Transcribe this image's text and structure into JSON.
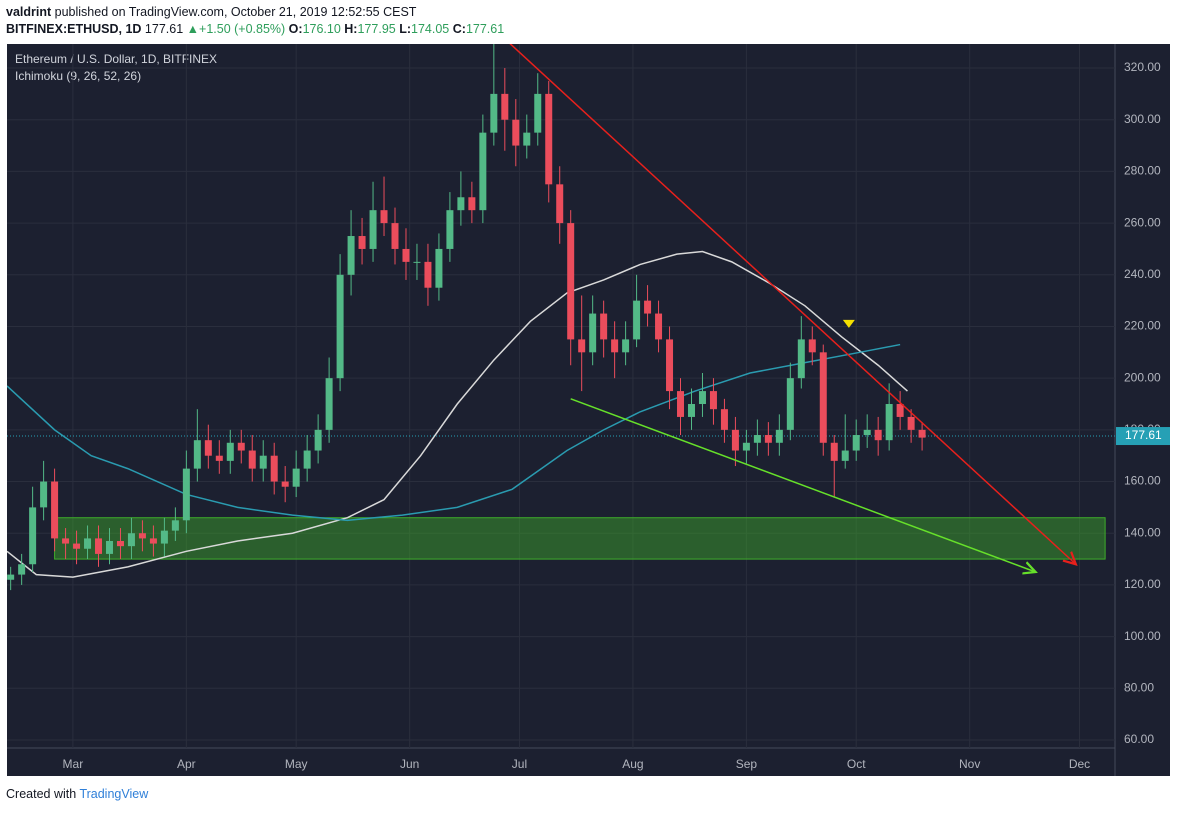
{
  "header": {
    "author": "valdrint",
    "published": "published on TradingView.com, October 21, 2019 12:52:55 CEST",
    "symbol": "BITFINEX:ETHUSD, 1D",
    "price": "177.61",
    "arrow": "▲",
    "change": "+1.50 (+0.85%)",
    "o_label": "O:",
    "o": "176.10",
    "h_label": "H:",
    "h": "177.95",
    "l_label": "L:",
    "l": "174.05",
    "c_label": "C:",
    "c": "177.61"
  },
  "footer": {
    "created": "Created with",
    "brand": "TradingView"
  },
  "chart_data": {
    "type": "candlestick",
    "title": "Ethereum / U.S. Dollar, 1D, BITFINEX",
    "indicator": "Ichimoku (9, 26, 52, 26)",
    "x": [
      -17,
      -14,
      -11,
      -8,
      -5,
      -2,
      1,
      4,
      7,
      10,
      13,
      16,
      19,
      22,
      25,
      28,
      31,
      34,
      37,
      40,
      43,
      46,
      49,
      52,
      55,
      58,
      61,
      64,
      67,
      70,
      73,
      76,
      79,
      82,
      85,
      88,
      91,
      94,
      97,
      100,
      103,
      106,
      109,
      112,
      115,
      118,
      121,
      124,
      127,
      130,
      133,
      136,
      139,
      142,
      145,
      148,
      151,
      154,
      157,
      160,
      163,
      166,
      169,
      172,
      175,
      178,
      181,
      184,
      187,
      190,
      193,
      196,
      199,
      202,
      205,
      208,
      211,
      214,
      217,
      220,
      223,
      226,
      229,
      232
    ],
    "open": [
      122,
      124,
      128,
      150,
      160,
      138,
      136,
      134,
      138,
      132,
      137,
      135,
      140,
      138,
      136,
      141,
      145,
      165,
      176,
      170,
      168,
      175,
      172,
      165,
      170,
      160,
      158,
      165,
      172,
      180,
      200,
      240,
      255,
      250,
      265,
      260,
      250,
      245,
      245,
      235,
      250,
      265,
      270,
      265,
      295,
      310,
      300,
      290,
      295,
      310,
      275,
      260,
      215,
      210,
      225,
      215,
      210,
      215,
      230,
      225,
      215,
      195,
      185,
      190,
      195,
      188,
      180,
      172,
      175,
      178,
      175,
      180,
      200,
      215,
      210,
      175,
      168,
      172,
      178,
      180,
      176,
      190,
      185,
      180
    ],
    "high": [
      127,
      132,
      158,
      168,
      165,
      142,
      141,
      143,
      143,
      142,
      142,
      146,
      145,
      143,
      146,
      150,
      172,
      188,
      182,
      176,
      180,
      180,
      178,
      176,
      175,
      166,
      172,
      178,
      186,
      208,
      248,
      265,
      262,
      276,
      278,
      266,
      258,
      252,
      252,
      256,
      272,
      280,
      276,
      302,
      330,
      320,
      308,
      302,
      318,
      315,
      282,
      265,
      232,
      232,
      230,
      222,
      222,
      240,
      236,
      230,
      220,
      200,
      196,
      202,
      200,
      192,
      185,
      180,
      184,
      183,
      186,
      206,
      224,
      220,
      213,
      178,
      186,
      184,
      186,
      185,
      198,
      195,
      188,
      183
    ],
    "low": [
      118,
      120,
      125,
      145,
      133,
      130,
      128,
      130,
      127,
      128,
      130,
      130,
      133,
      131,
      131,
      137,
      140,
      160,
      165,
      163,
      163,
      167,
      160,
      160,
      155,
      152,
      154,
      160,
      167,
      175,
      195,
      232,
      244,
      245,
      255,
      244,
      238,
      238,
      228,
      230,
      245,
      259,
      260,
      260,
      290,
      288,
      282,
      285,
      290,
      268,
      252,
      205,
      195,
      205,
      208,
      200,
      205,
      212,
      220,
      210,
      188,
      178,
      180,
      185,
      182,
      175,
      166,
      167,
      170,
      170,
      170,
      176,
      196,
      205,
      170,
      154,
      165,
      168,
      173,
      170,
      172,
      180,
      175,
      172
    ],
    "close": [
      124,
      128,
      150,
      160,
      138,
      136,
      134,
      138,
      132,
      137,
      135,
      140,
      138,
      136,
      141,
      145,
      165,
      176,
      170,
      168,
      175,
      172,
      165,
      170,
      160,
      158,
      165,
      172,
      180,
      200,
      240,
      255,
      250,
      265,
      260,
      250,
      245,
      245,
      235,
      250,
      265,
      270,
      265,
      295,
      310,
      300,
      290,
      295,
      310,
      275,
      260,
      215,
      210,
      225,
      215,
      210,
      215,
      230,
      225,
      215,
      195,
      185,
      190,
      195,
      188,
      180,
      172,
      175,
      178,
      175,
      180,
      200,
      215,
      210,
      175,
      168,
      172,
      178,
      180,
      176,
      190,
      185,
      180,
      177
    ],
    "up_color": "#53b987",
    "down_color": "#eb4d5c",
    "lines": [
      {
        "color": "#d9d9d9",
        "x": [
          -18,
          -10,
          0,
          15,
          31,
          45,
          60,
          75,
          85,
          95,
          105,
          115,
          125,
          135,
          145,
          155,
          165,
          172,
          180,
          190,
          200,
          210,
          220,
          228
        ],
        "values": [
          133,
          124,
          123,
          127,
          133,
          137,
          140,
          146,
          153,
          170,
          190,
          207,
          222,
          233,
          238,
          244,
          248,
          249,
          245,
          237,
          228,
          216,
          205,
          195
        ]
      },
      {
        "color": "#2a9bb0",
        "x": [
          -18,
          -5,
          5,
          15,
          31,
          45,
          60,
          75,
          90,
          105,
          120,
          135,
          145,
          155,
          170,
          185,
          200,
          215,
          226
        ],
        "values": [
          197,
          180,
          170,
          165,
          155,
          150,
          147,
          145,
          147,
          150,
          157,
          172,
          180,
          187,
          195,
          202,
          206,
          210,
          213
        ]
      }
    ],
    "trendlines": [
      {
        "color": "#e8201c",
        "x": [
          119,
          274
        ],
        "values": [
          330,
          128
        ]
      },
      {
        "color": "#66e02a",
        "x": [
          136,
          263
        ],
        "values": [
          192,
          125
        ]
      }
    ],
    "zone": {
      "color": "#3fae2a",
      "x": [
        -5,
        282
      ],
      "values": [
        130,
        146
      ]
    },
    "marker": {
      "color": "#f5e000",
      "x": 212,
      "value": 221
    },
    "last": {
      "value": 177.61,
      "label": "177.61"
    },
    "xlim": [
      -18,
      284.7
    ],
    "ylim": [
      56.9,
      329.3
    ],
    "xticks": [
      {
        "value": 0,
        "label": "Mar"
      },
      {
        "value": 31,
        "label": "Apr"
      },
      {
        "value": 61,
        "label": "May"
      },
      {
        "value": 92,
        "label": "Jun"
      },
      {
        "value": 122,
        "label": "Jul"
      },
      {
        "value": 153,
        "label": "Aug"
      },
      {
        "value": 184,
        "label": "Sep"
      },
      {
        "value": 214,
        "label": "Oct"
      },
      {
        "value": 245,
        "label": "Nov"
      },
      {
        "value": 275,
        "label": "Dec"
      }
    ],
    "yticks": [
      {
        "value": 60,
        "label": "60.00"
      },
      {
        "value": 80,
        "label": "80.00"
      },
      {
        "value": 100,
        "label": "100.00"
      },
      {
        "value": 120,
        "label": "120.00"
      },
      {
        "value": 140,
        "label": "140.00"
      },
      {
        "value": 160,
        "label": "160.00"
      },
      {
        "value": 180,
        "label": "180.00"
      },
      {
        "value": 200,
        "label": "200.00"
      },
      {
        "value": 220,
        "label": "220.00"
      },
      {
        "value": 240,
        "label": "240.00"
      },
      {
        "value": 260,
        "label": "260.00"
      },
      {
        "value": 280,
        "label": "280.00"
      },
      {
        "value": 300,
        "label": "300.00"
      },
      {
        "value": 320,
        "label": "320.00"
      }
    ],
    "grid": true
  }
}
